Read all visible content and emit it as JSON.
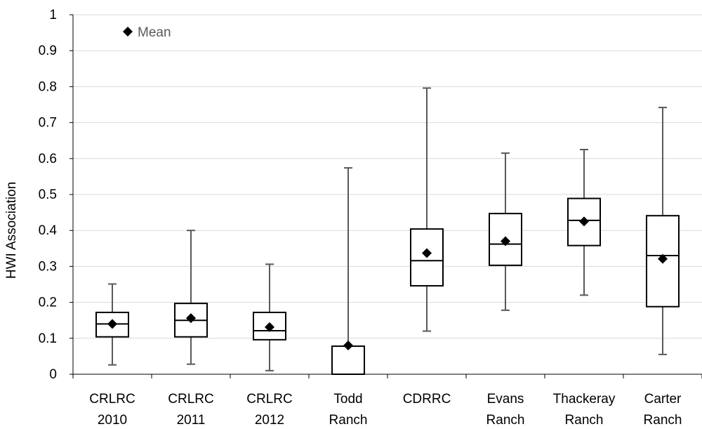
{
  "chart_data": {
    "type": "box",
    "ylabel": "HWI Association",
    "xlabel": "",
    "ylim": [
      0,
      1
    ],
    "yticks": [
      "0",
      "0.1",
      "0.2",
      "0.3",
      "0.4",
      "0.5",
      "0.6",
      "0.7",
      "0.8",
      "0.9",
      "1"
    ],
    "grid": true,
    "legend": {
      "position": "top-left",
      "entries": [
        "Mean"
      ]
    },
    "categories": [
      [
        "CRLRC",
        "2010"
      ],
      [
        "CRLRC",
        "2011"
      ],
      [
        "CRLRC",
        "2012"
      ],
      [
        "Todd",
        "Ranch"
      ],
      [
        "CDRRC"
      ],
      [
        "Evans",
        "Ranch"
      ],
      [
        "Thackeray",
        "Ranch"
      ],
      [
        "Carter",
        "Ranch"
      ]
    ],
    "boxes": [
      {
        "min": 0.026,
        "q1": 0.104,
        "median": 0.14,
        "q3": 0.172,
        "max": 0.251,
        "mean": 0.14
      },
      {
        "min": 0.028,
        "q1": 0.104,
        "median": 0.15,
        "q3": 0.197,
        "max": 0.4,
        "mean": 0.156
      },
      {
        "min": 0.01,
        "q1": 0.096,
        "median": 0.121,
        "q3": 0.172,
        "max": 0.306,
        "mean": 0.131
      },
      {
        "min": 0.0,
        "q1": 0.0,
        "median": 0.0,
        "q3": 0.078,
        "max": 0.574,
        "mean": 0.08
      },
      {
        "min": 0.12,
        "q1": 0.246,
        "median": 0.316,
        "q3": 0.404,
        "max": 0.796,
        "mean": 0.337
      },
      {
        "min": 0.178,
        "q1": 0.303,
        "median": 0.362,
        "q3": 0.447,
        "max": 0.615,
        "mean": 0.37
      },
      {
        "min": 0.22,
        "q1": 0.358,
        "median": 0.428,
        "q3": 0.489,
        "max": 0.625,
        "mean": 0.425
      },
      {
        "min": 0.055,
        "q1": 0.188,
        "median": 0.33,
        "q3": 0.441,
        "max": 0.742,
        "mean": 0.321
      }
    ],
    "colors": {
      "box_fill": "#ffffff",
      "box_stroke": "#000000",
      "whisker": "#595959",
      "mean_marker": "#000000",
      "grid": "#d9d9d9",
      "axis": "#000000",
      "legend_text": "#595959"
    }
  }
}
